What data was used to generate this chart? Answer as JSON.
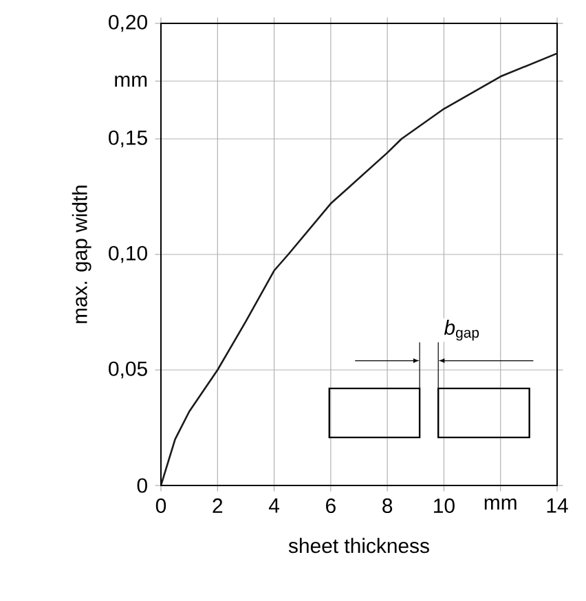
{
  "chart_data": {
    "type": "line",
    "xlabel": "sheet thickness",
    "ylabel": "max. gap width",
    "x": [
      0,
      0.25,
      0.5,
      1,
      2,
      3,
      4,
      4.5,
      6,
      8,
      8.5,
      10,
      12,
      14
    ],
    "series": [
      {
        "color": "#1a1a1a",
        "values": [
          0,
          0.01,
          0.02,
          0.032,
          0.05,
          0.071,
          0.093,
          0.1,
          0.122,
          0.144,
          0.15,
          0.163,
          0.177,
          0.187
        ]
      }
    ],
    "xlim": [
      0,
      14
    ],
    "ylim": [
      0,
      0.2
    ],
    "xticks": [
      0,
      2,
      4,
      6,
      8,
      10,
      {
        "value": 12,
        "label": "mm"
      },
      14
    ],
    "yticks": [
      0,
      {
        "value": 0.05,
        "label": "0,05"
      },
      {
        "value": 0.1,
        "label": "0,10"
      },
      {
        "value": 0.15,
        "label": "0,15"
      },
      {
        "value": 0.175,
        "label": "mm"
      },
      {
        "value": 0.2,
        "label": "0,20"
      }
    ],
    "grid": true,
    "marker": "none",
    "line_style": "solid",
    "annotations": [
      "*b*$_{gap}$"
    ]
  }
}
